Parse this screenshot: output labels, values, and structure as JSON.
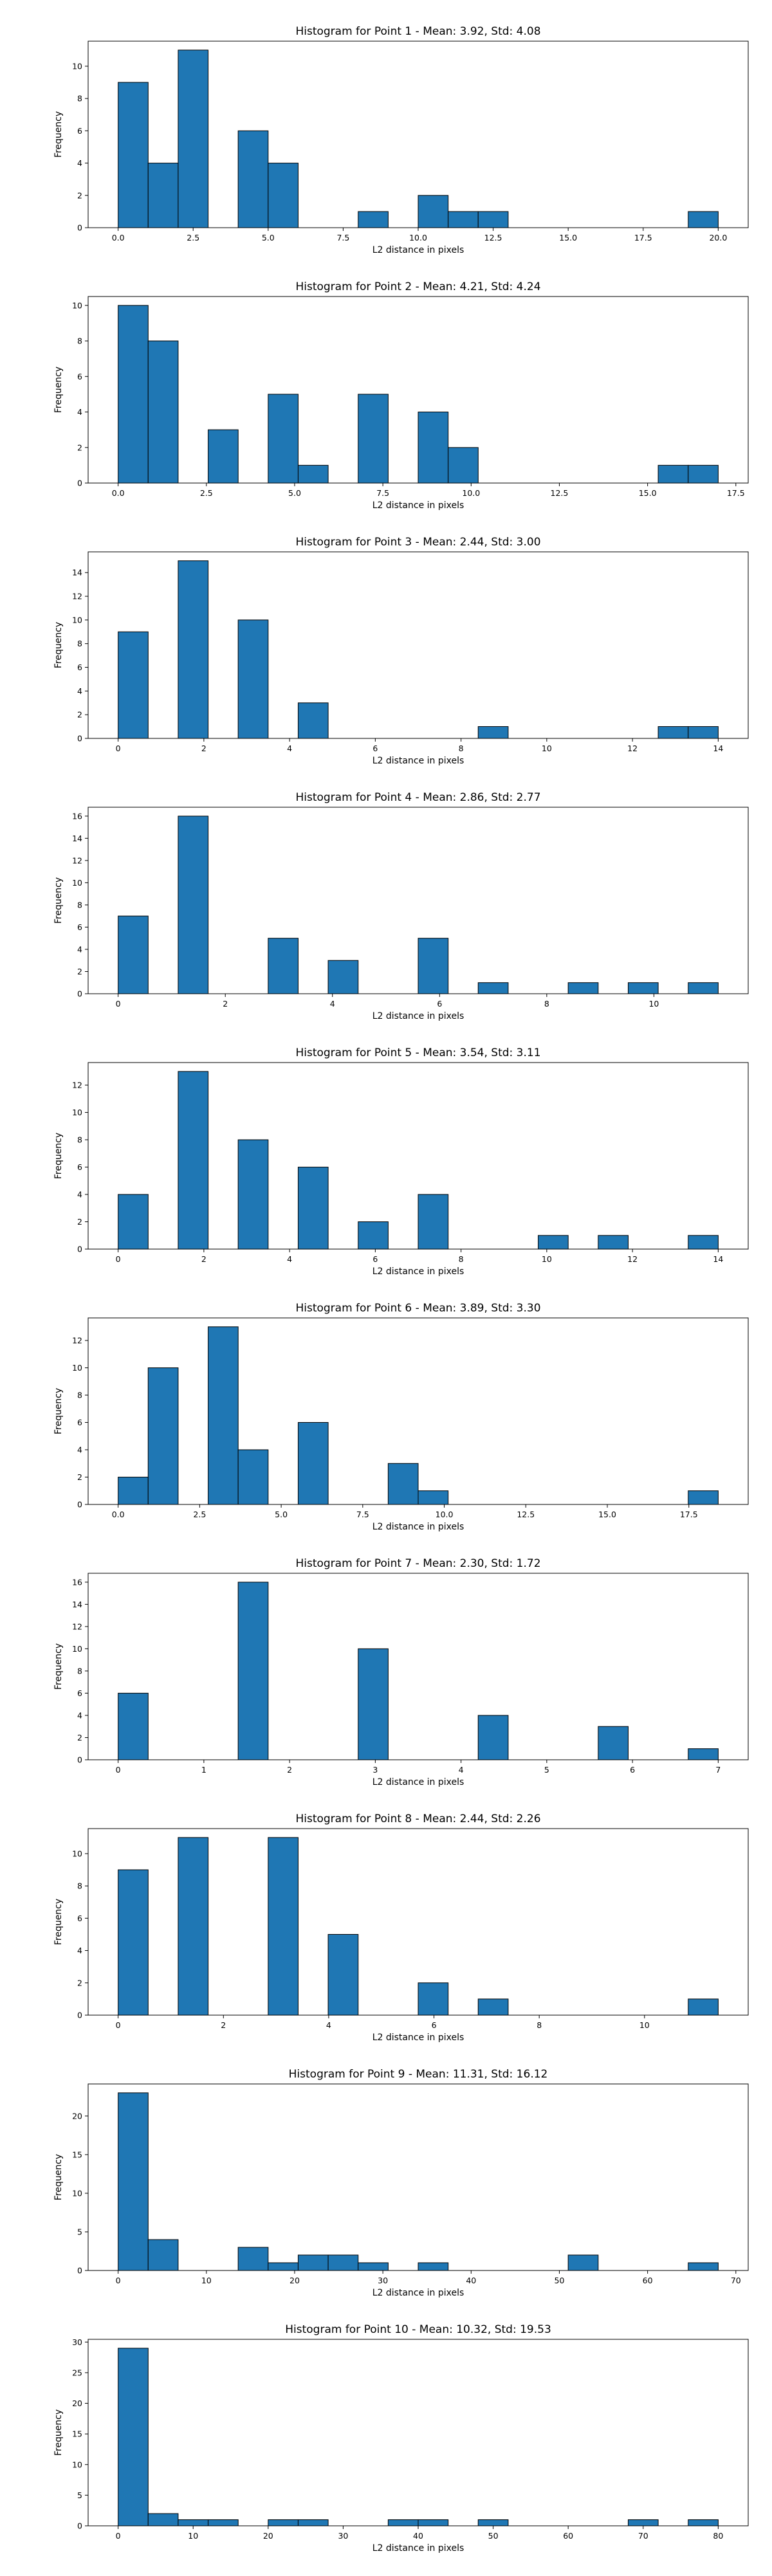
{
  "chart_data": [
    {
      "type": "bar",
      "title": "Histogram for Point 1 - Mean: 3.92, Std: 4.08",
      "xlabel": "L2 distance in pixels",
      "ylabel": "Frequency",
      "xlim": [
        -1.0,
        21.0
      ],
      "ylim": [
        0,
        11.55
      ],
      "xticks": [
        "0.0",
        "2.5",
        "5.0",
        "7.5",
        "10.0",
        "12.5",
        "15.0",
        "17.5",
        "20.0"
      ],
      "xtick_values": [
        0,
        2.5,
        5,
        7.5,
        10,
        12.5,
        15,
        17.5,
        20
      ],
      "yticks": [
        0,
        2,
        4,
        6,
        8,
        10
      ],
      "bins": [
        {
          "start": 0.0,
          "end": 1.0,
          "count": 9
        },
        {
          "start": 1.0,
          "end": 2.0,
          "count": 4
        },
        {
          "start": 2.0,
          "end": 3.0,
          "count": 11
        },
        {
          "start": 4.0,
          "end": 5.0,
          "count": 6
        },
        {
          "start": 5.0,
          "end": 6.0,
          "count": 4
        },
        {
          "start": 8.0,
          "end": 9.0,
          "count": 1
        },
        {
          "start": 10.0,
          "end": 11.0,
          "count": 2
        },
        {
          "start": 11.0,
          "end": 12.0,
          "count": 1
        },
        {
          "start": 12.0,
          "end": 13.0,
          "count": 1
        },
        {
          "start": 19.0,
          "end": 20.0,
          "count": 1
        }
      ]
    },
    {
      "type": "bar",
      "title": "Histogram for Point 2 - Mean: 4.21, Std: 4.24",
      "xlabel": "L2 distance in pixels",
      "ylabel": "Frequency",
      "xlim": [
        -0.85,
        17.85
      ],
      "ylim": [
        0,
        10.5
      ],
      "xticks": [
        "0.0",
        "2.5",
        "5.0",
        "7.5",
        "10.0",
        "12.5",
        "15.0",
        "17.5"
      ],
      "xtick_values": [
        0,
        2.5,
        5,
        7.5,
        10,
        12.5,
        15,
        17.5
      ],
      "yticks": [
        0,
        2,
        4,
        6,
        8,
        10
      ],
      "bins": [
        {
          "start": 0.0,
          "end": 0.85,
          "count": 10
        },
        {
          "start": 0.85,
          "end": 1.7,
          "count": 8
        },
        {
          "start": 2.55,
          "end": 3.4,
          "count": 3
        },
        {
          "start": 4.25,
          "end": 5.1,
          "count": 5
        },
        {
          "start": 5.1,
          "end": 5.95,
          "count": 1
        },
        {
          "start": 6.8,
          "end": 7.65,
          "count": 5
        },
        {
          "start": 8.5,
          "end": 9.35,
          "count": 4
        },
        {
          "start": 9.35,
          "end": 10.2,
          "count": 2
        },
        {
          "start": 15.3,
          "end": 16.15,
          "count": 1
        },
        {
          "start": 16.15,
          "end": 17.0,
          "count": 1
        }
      ]
    },
    {
      "type": "bar",
      "title": "Histogram for Point 3 - Mean: 2.44, Std: 3.00",
      "xlabel": "L2 distance in pixels",
      "ylabel": "Frequency",
      "xlim": [
        -0.7,
        14.7
      ],
      "ylim": [
        0,
        15.75
      ],
      "xticks": [
        "0",
        "2",
        "4",
        "6",
        "8",
        "10",
        "12",
        "14"
      ],
      "xtick_values": [
        0,
        2,
        4,
        6,
        8,
        10,
        12,
        14
      ],
      "yticks": [
        0,
        2,
        4,
        6,
        8,
        10,
        12,
        14
      ],
      "bins": [
        {
          "start": 0.0,
          "end": 0.7,
          "count": 9
        },
        {
          "start": 1.4,
          "end": 2.1,
          "count": 15
        },
        {
          "start": 2.8,
          "end": 3.5,
          "count": 10
        },
        {
          "start": 4.2,
          "end": 4.9,
          "count": 3
        },
        {
          "start": 8.4,
          "end": 9.1,
          "count": 1
        },
        {
          "start": 12.6,
          "end": 13.3,
          "count": 1
        },
        {
          "start": 13.3,
          "end": 14.0,
          "count": 1
        }
      ]
    },
    {
      "type": "bar",
      "title": "Histogram for Point 4 - Mean: 2.86, Std: 2.77",
      "xlabel": "L2 distance in pixels",
      "ylabel": "Frequency",
      "xlim": [
        -0.56,
        11.76
      ],
      "ylim": [
        0,
        16.8
      ],
      "xticks": [
        "0",
        "2",
        "4",
        "6",
        "8",
        "10"
      ],
      "xtick_values": [
        0,
        2,
        4,
        6,
        8,
        10
      ],
      "yticks": [
        0,
        2,
        4,
        6,
        8,
        10,
        12,
        14,
        16
      ],
      "bins": [
        {
          "start": 0.0,
          "end": 0.56,
          "count": 7
        },
        {
          "start": 1.12,
          "end": 1.68,
          "count": 16
        },
        {
          "start": 2.8,
          "end": 3.36,
          "count": 5
        },
        {
          "start": 3.92,
          "end": 4.48,
          "count": 3
        },
        {
          "start": 5.6,
          "end": 6.16,
          "count": 5
        },
        {
          "start": 6.72,
          "end": 7.28,
          "count": 1
        },
        {
          "start": 8.4,
          "end": 8.96,
          "count": 1
        },
        {
          "start": 9.52,
          "end": 10.08,
          "count": 1
        },
        {
          "start": 10.64,
          "end": 11.2,
          "count": 1
        }
      ]
    },
    {
      "type": "bar",
      "title": "Histogram for Point 5 - Mean: 3.54, Std: 3.11",
      "xlabel": "L2 distance in pixels",
      "ylabel": "Frequency",
      "xlim": [
        -0.7,
        14.7
      ],
      "ylim": [
        0,
        13.65
      ],
      "xticks": [
        "0",
        "2",
        "4",
        "6",
        "8",
        "10",
        "12",
        "14"
      ],
      "xtick_values": [
        0,
        2,
        4,
        6,
        8,
        10,
        12,
        14
      ],
      "yticks": [
        0,
        2,
        4,
        6,
        8,
        10,
        12
      ],
      "bins": [
        {
          "start": 0.0,
          "end": 0.7,
          "count": 4
        },
        {
          "start": 1.4,
          "end": 2.1,
          "count": 13
        },
        {
          "start": 2.8,
          "end": 3.5,
          "count": 8
        },
        {
          "start": 4.2,
          "end": 4.9,
          "count": 6
        },
        {
          "start": 5.6,
          "end": 6.3,
          "count": 2
        },
        {
          "start": 7.0,
          "end": 7.7,
          "count": 4
        },
        {
          "start": 9.8,
          "end": 10.5,
          "count": 1
        },
        {
          "start": 11.2,
          "end": 11.9,
          "count": 1
        },
        {
          "start": 13.3,
          "end": 14.0,
          "count": 1
        }
      ]
    },
    {
      "type": "bar",
      "title": "Histogram for Point 6 - Mean: 3.89, Std: 3.30",
      "xlabel": "L2 distance in pixels",
      "ylabel": "Frequency",
      "xlim": [
        -0.92,
        19.32
      ],
      "ylim": [
        0,
        13.65
      ],
      "xticks": [
        "0.0",
        "2.5",
        "5.0",
        "7.5",
        "10.0",
        "12.5",
        "15.0",
        "17.5"
      ],
      "xtick_values": [
        0,
        2.5,
        5,
        7.5,
        10,
        12.5,
        15,
        17.5
      ],
      "yticks": [
        0,
        2,
        4,
        6,
        8,
        10,
        12
      ],
      "bins": [
        {
          "start": 0.0,
          "end": 0.92,
          "count": 2
        },
        {
          "start": 0.92,
          "end": 1.84,
          "count": 10
        },
        {
          "start": 2.76,
          "end": 3.68,
          "count": 13
        },
        {
          "start": 3.68,
          "end": 4.6,
          "count": 4
        },
        {
          "start": 5.52,
          "end": 6.44,
          "count": 6
        },
        {
          "start": 8.28,
          "end": 9.2,
          "count": 3
        },
        {
          "start": 9.2,
          "end": 10.12,
          "count": 1
        },
        {
          "start": 17.48,
          "end": 18.4,
          "count": 1
        }
      ]
    },
    {
      "type": "bar",
      "title": "Histogram for Point 7 - Mean: 2.30, Std: 1.72",
      "xlabel": "L2 distance in pixels",
      "ylabel": "Frequency",
      "xlim": [
        -0.35,
        7.35
      ],
      "ylim": [
        0,
        16.8
      ],
      "xticks": [
        "0",
        "1",
        "2",
        "3",
        "4",
        "5",
        "6",
        "7"
      ],
      "xtick_values": [
        0,
        1,
        2,
        3,
        4,
        5,
        6,
        7
      ],
      "yticks": [
        0,
        2,
        4,
        6,
        8,
        10,
        12,
        14,
        16
      ],
      "bins": [
        {
          "start": 0.0,
          "end": 0.35,
          "count": 6
        },
        {
          "start": 1.4,
          "end": 1.75,
          "count": 16
        },
        {
          "start": 2.8,
          "end": 3.15,
          "count": 10
        },
        {
          "start": 4.2,
          "end": 4.55,
          "count": 4
        },
        {
          "start": 5.6,
          "end": 5.95,
          "count": 3
        },
        {
          "start": 6.65,
          "end": 7.0,
          "count": 1
        }
      ]
    },
    {
      "type": "bar",
      "title": "Histogram for Point 8 - Mean: 2.44, Std: 2.26",
      "xlabel": "L2 distance in pixels",
      "ylabel": "Frequency",
      "xlim": [
        -0.57,
        11.97
      ],
      "ylim": [
        0,
        11.55
      ],
      "xticks": [
        "0",
        "2",
        "4",
        "6",
        "8",
        "10"
      ],
      "xtick_values": [
        0,
        2,
        4,
        6,
        8,
        10
      ],
      "yticks": [
        0,
        2,
        4,
        6,
        8,
        10
      ],
      "bins": [
        {
          "start": 0.0,
          "end": 0.57,
          "count": 9
        },
        {
          "start": 1.14,
          "end": 1.71,
          "count": 11
        },
        {
          "start": 2.85,
          "end": 3.42,
          "count": 11
        },
        {
          "start": 3.99,
          "end": 4.56,
          "count": 5
        },
        {
          "start": 5.7,
          "end": 6.27,
          "count": 2
        },
        {
          "start": 6.84,
          "end": 7.41,
          "count": 1
        },
        {
          "start": 10.83,
          "end": 11.4,
          "count": 1
        }
      ]
    },
    {
      "type": "bar",
      "title": "Histogram for Point 9 - Mean: 11.31, Std: 16.12",
      "xlabel": "L2 distance in pixels",
      "ylabel": "Frequency",
      "xlim": [
        -3.4,
        71.4
      ],
      "ylim": [
        0,
        24.15
      ],
      "xticks": [
        "0",
        "10",
        "20",
        "30",
        "40",
        "50",
        "60",
        "70"
      ],
      "xtick_values": [
        0,
        10,
        20,
        30,
        40,
        50,
        60,
        70
      ],
      "yticks": [
        0,
        5,
        10,
        15,
        20
      ],
      "bins": [
        {
          "start": 0.0,
          "end": 3.4,
          "count": 23
        },
        {
          "start": 3.4,
          "end": 6.8,
          "count": 4
        },
        {
          "start": 13.6,
          "end": 17.0,
          "count": 3
        },
        {
          "start": 17.0,
          "end": 20.4,
          "count": 1
        },
        {
          "start": 20.4,
          "end": 23.8,
          "count": 2
        },
        {
          "start": 23.8,
          "end": 27.2,
          "count": 2
        },
        {
          "start": 27.2,
          "end": 30.6,
          "count": 1
        },
        {
          "start": 34.0,
          "end": 37.4,
          "count": 1
        },
        {
          "start": 51.0,
          "end": 54.4,
          "count": 2
        },
        {
          "start": 64.6,
          "end": 68.0,
          "count": 1
        }
      ]
    },
    {
      "type": "bar",
      "title": "Histogram for Point 10 - Mean: 10.32, Std: 19.53",
      "xlabel": "L2 distance in pixels",
      "ylabel": "Frequency",
      "xlim": [
        -4.0,
        84.0
      ],
      "ylim": [
        0,
        30.45
      ],
      "xticks": [
        "0",
        "10",
        "20",
        "30",
        "40",
        "50",
        "60",
        "70",
        "80"
      ],
      "xtick_values": [
        0,
        10,
        20,
        30,
        40,
        50,
        60,
        70,
        80
      ],
      "yticks": [
        0,
        5,
        10,
        15,
        20,
        25,
        30
      ],
      "bins": [
        {
          "start": 0.0,
          "end": 4.0,
          "count": 29
        },
        {
          "start": 4.0,
          "end": 8.0,
          "count": 2
        },
        {
          "start": 8.0,
          "end": 12.0,
          "count": 1
        },
        {
          "start": 12.0,
          "end": 16.0,
          "count": 1
        },
        {
          "start": 20.0,
          "end": 24.0,
          "count": 1
        },
        {
          "start": 24.0,
          "end": 28.0,
          "count": 1
        },
        {
          "start": 36.0,
          "end": 40.0,
          "count": 1
        },
        {
          "start": 40.0,
          "end": 44.0,
          "count": 1
        },
        {
          "start": 48.0,
          "end": 52.0,
          "count": 1
        },
        {
          "start": 68.0,
          "end": 72.0,
          "count": 1
        },
        {
          "start": 76.0,
          "end": 80.0,
          "count": 1
        }
      ]
    }
  ]
}
